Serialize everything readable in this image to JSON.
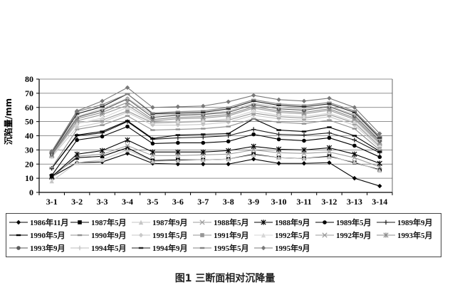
{
  "figure": {
    "caption": "图1 三断面相对沉降量"
  },
  "chart_data": {
    "type": "line",
    "title": "",
    "xlabel": "",
    "ylabel": "沉陷量/mm",
    "ylim": [
      0,
      80
    ],
    "ytick_step": 10,
    "grid": true,
    "legend_position": "bottom-box",
    "categories": [
      "3-1",
      "3-2",
      "3-3",
      "3-4",
      "3-5",
      "3-6",
      "3-7",
      "3-8",
      "3-9",
      "3-10",
      "3-11",
      "3-12",
      "3-13",
      "3-14"
    ],
    "series": [
      {
        "name": "1986年11月",
        "marker": "diamond",
        "color": "#000000",
        "values": [
          11,
          21,
          21.5,
          27.5,
          20.5,
          20,
          20,
          20,
          23.5,
          20.5,
          20.5,
          21,
          10,
          4.5
        ]
      },
      {
        "name": "1987年5月",
        "marker": "square",
        "color": "#000000",
        "values": [
          11.5,
          24.5,
          25.5,
          31.5,
          22.5,
          23,
          23,
          23.5,
          27,
          24.5,
          24,
          25.5,
          21,
          16
        ]
      },
      {
        "name": "1987年9月",
        "marker": "triangle",
        "color": "#c6c6c6",
        "values": [
          8,
          21,
          23,
          30,
          22,
          22.5,
          23,
          23.5,
          26.5,
          24.5,
          24,
          25,
          21.5,
          15.5
        ]
      },
      {
        "name": "1988年5月",
        "marker": "x",
        "color": "#9e9e9e",
        "values": [
          10.5,
          25.5,
          27,
          33,
          26,
          26,
          26.5,
          27,
          30,
          28,
          27.5,
          28.5,
          24.5,
          18
        ]
      },
      {
        "name": "1988年9月",
        "marker": "star",
        "color": "#000000",
        "values": [
          11,
          27,
          29.5,
          37,
          28.5,
          28.5,
          28.5,
          29.5,
          32.5,
          30.5,
          30,
          31.5,
          27,
          20.5
        ]
      },
      {
        "name": "1989年5月",
        "marker": "circle",
        "color": "#000000",
        "values": [
          12,
          37,
          39.5,
          46.5,
          34.5,
          35,
          35,
          36,
          41,
          37.5,
          36.5,
          38.5,
          33,
          25
        ]
      },
      {
        "name": "1989年9月",
        "marker": "plus",
        "color": "#1a1a1a",
        "values": [
          17,
          40,
          42,
          50,
          37.5,
          38.5,
          39,
          40,
          44.5,
          41,
          40.5,
          42,
          37,
          28
        ]
      },
      {
        "name": "1990年5月",
        "marker": "dash",
        "color": "#000000",
        "values": [
          17,
          40.5,
          43,
          50.5,
          38,
          40.5,
          41,
          41.5,
          52,
          44,
          43,
          46,
          40,
          29
        ]
      },
      {
        "name": "1990年9月",
        "marker": "dash",
        "color": "#8f8f8f",
        "values": [
          17.5,
          44.5,
          47.5,
          54,
          44,
          44.5,
          45,
          46.5,
          52,
          49.5,
          48.5,
          51,
          45,
          30
        ]
      },
      {
        "name": "1991年5月",
        "marker": "diamond",
        "color": "#c9c9c9",
        "values": [
          25,
          46,
          49.5,
          56.5,
          47.5,
          47.5,
          48,
          49.5,
          54.5,
          52,
          51,
          53.5,
          47.5,
          31.5
        ]
      },
      {
        "name": "1991年9月",
        "marker": "square",
        "color": "#969696",
        "values": [
          26,
          49,
          51,
          57.5,
          49,
          49.5,
          50,
          51,
          56,
          53.5,
          52.5,
          55,
          49,
          32.5
        ]
      },
      {
        "name": "1992年5月",
        "marker": "triangle",
        "color": "#d6d6d6",
        "values": [
          25.5,
          48.5,
          52.5,
          60,
          49.5,
          50,
          50.5,
          52,
          57.5,
          54.5,
          53.5,
          56,
          50,
          33.5
        ]
      },
      {
        "name": "1992年9月",
        "marker": "x",
        "color": "#9b9b9b",
        "values": [
          26,
          50.5,
          55,
          61.5,
          50.5,
          52,
          52.5,
          54,
          59.5,
          56.5,
          55.5,
          58,
          51.5,
          34.5
        ]
      },
      {
        "name": "1993年5月",
        "marker": "star",
        "color": "#8c8c8c",
        "values": [
          26.5,
          52,
          56.5,
          63.5,
          51.5,
          53,
          53.5,
          55,
          60.5,
          57.5,
          56.5,
          59,
          52.5,
          35.5
        ]
      },
      {
        "name": "1993年9月",
        "marker": "circle",
        "color": "#5a5a5a",
        "values": [
          27,
          53,
          58,
          66,
          53,
          54.5,
          55,
          56.5,
          62,
          59,
          58,
          60.5,
          54,
          36.5
        ]
      },
      {
        "name": "1994年5月",
        "marker": "plus",
        "color": "#bdbdbd",
        "values": [
          27.5,
          53.5,
          59,
          66.5,
          54.5,
          55,
          55.5,
          57.5,
          63,
          60,
          59,
          61,
          55,
          37.5
        ]
      },
      {
        "name": "1994年9月",
        "marker": "dash",
        "color": "#222222",
        "values": [
          28,
          55.5,
          60.5,
          69.5,
          55.5,
          56,
          56.5,
          59,
          64.5,
          61.5,
          60.5,
          62.5,
          56.5,
          38.5
        ]
      },
      {
        "name": "1995年5月",
        "marker": "dash",
        "color": "#828282",
        "values": [
          28.5,
          57,
          62,
          69.5,
          56,
          57,
          57.5,
          60,
          65.5,
          62.5,
          61.5,
          63.5,
          57.5,
          39.5
        ]
      },
      {
        "name": "1995年9月",
        "marker": "diamond",
        "color": "#787878",
        "values": [
          29,
          57.5,
          64.5,
          74,
          60,
          60.5,
          61,
          64,
          68.5,
          65.5,
          64.5,
          66.5,
          60,
          41.5
        ]
      }
    ]
  }
}
